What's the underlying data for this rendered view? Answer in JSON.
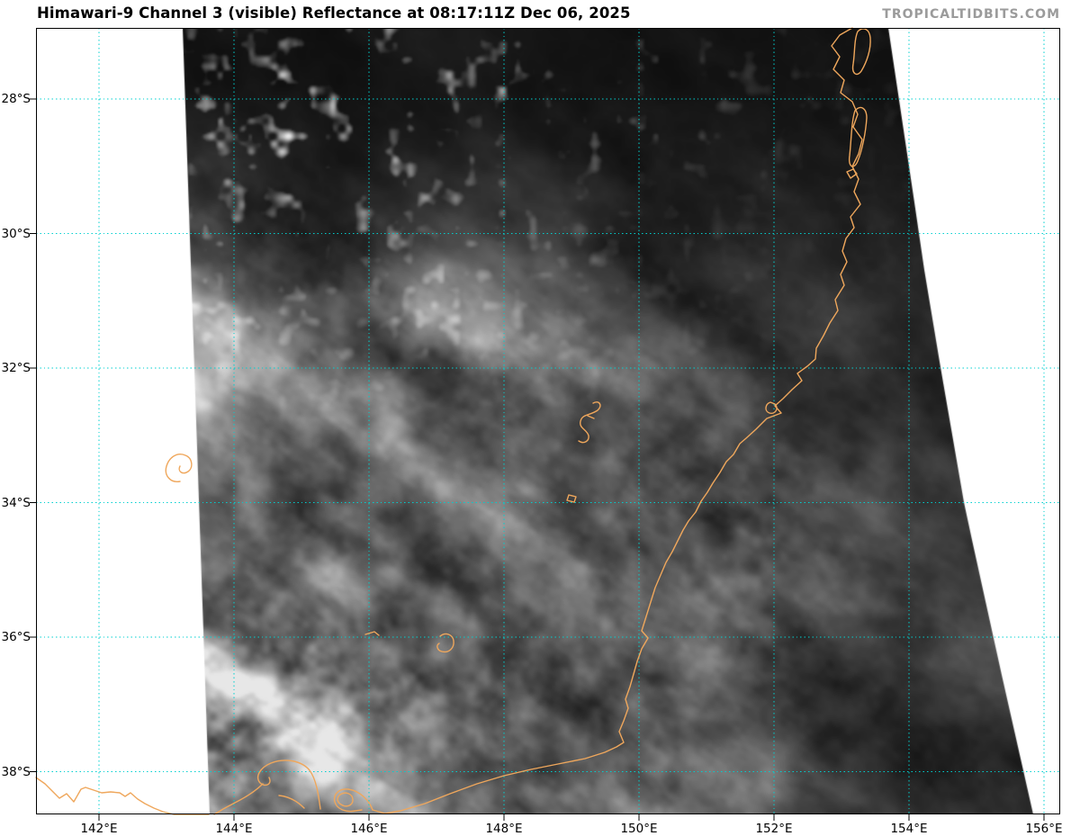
{
  "page": {
    "title": "Himawari-9 Channel 3 (visible) Reflectance at 08:17:11Z Dec 06, 2025",
    "watermark": "TROPICALTIDBITS.COM"
  },
  "map": {
    "description": "Grayscale visible-band satellite image of cloud cover over southeastern Australia with cyan lat/lon graticule and orange coastlines",
    "lat_tick_labels": [
      "28°S",
      "30°S",
      "32°S",
      "34°S",
      "36°S",
      "38°S"
    ],
    "lon_tick_labels": [
      "142°E",
      "144°E",
      "146°E",
      "148°E",
      "150°E",
      "152°E",
      "154°E",
      "156°E"
    ],
    "colors": {
      "gridlines": "#00d0d0",
      "coastline": "#efa75c",
      "map_border": "#000000",
      "watermark": "#9b9b9b",
      "no_data_background": "#ffffff"
    }
  }
}
